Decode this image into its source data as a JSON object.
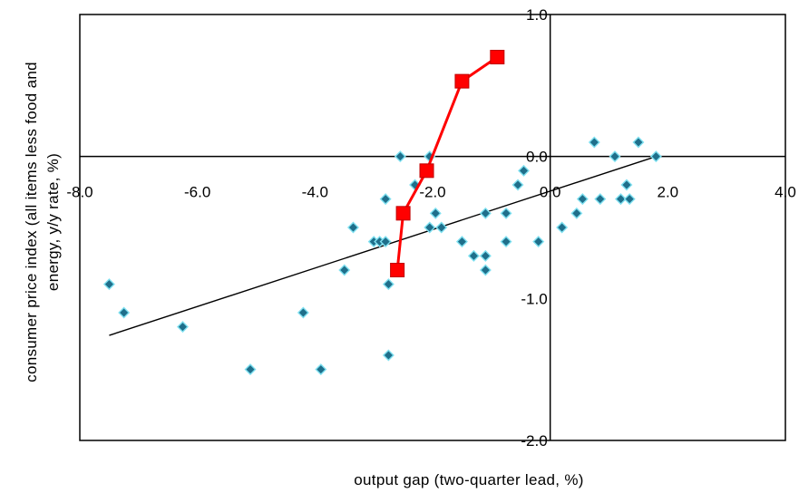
{
  "chart_data": {
    "type": "scatter",
    "xlabel": "output gap (two-quarter lead, %)",
    "ylabel_line1": "consumer price index (all items less food and",
    "ylabel_line2": "energy, y/y rate, %)",
    "xlim": [
      -8.0,
      4.0
    ],
    "ylim": [
      -2.0,
      1.0
    ],
    "x_ticks": [
      {
        "value": -8.0,
        "label": "-8.0"
      },
      {
        "value": -6.0,
        "label": "-6.0"
      },
      {
        "value": -4.0,
        "label": "-4.0"
      },
      {
        "value": -2.0,
        "label": "-2.0"
      },
      {
        "value": 0.0,
        "label": "0.0"
      },
      {
        "value": 2.0,
        "label": "2.0"
      },
      {
        "value": 4.0,
        "label": "4.0"
      }
    ],
    "y_ticks": [
      {
        "value": 1.0,
        "label": "1.0"
      },
      {
        "value": 0.0,
        "label": "0.0"
      },
      {
        "value": -1.0,
        "label": "-1.0"
      },
      {
        "value": -2.0,
        "label": "-2.0"
      }
    ],
    "grid": false,
    "colors": {
      "scatter_fill": "#1f6f8b",
      "scatter_edge": "#7fe0f0",
      "highlight": "#ff0000",
      "trend": "#000000"
    },
    "series": [
      {
        "kind": "scatter",
        "points": [
          [
            -7.5,
            -0.9
          ],
          [
            -7.25,
            -1.1
          ],
          [
            -6.25,
            -1.2
          ],
          [
            -5.1,
            -1.5
          ],
          [
            -4.2,
            -1.1
          ],
          [
            -3.9,
            -1.5
          ],
          [
            -3.5,
            -0.8
          ],
          [
            -3.35,
            -0.5
          ],
          [
            -3.0,
            -0.6
          ],
          [
            -2.9,
            -0.6
          ],
          [
            -2.8,
            -0.6
          ],
          [
            -2.8,
            -0.3
          ],
          [
            -2.75,
            -0.9
          ],
          [
            -2.75,
            -1.4
          ],
          [
            -2.55,
            0.0
          ],
          [
            -2.3,
            -0.2
          ],
          [
            -2.05,
            -0.5
          ],
          [
            -2.05,
            0.0
          ],
          [
            -1.95,
            -0.4
          ],
          [
            -1.85,
            -0.5
          ],
          [
            -1.5,
            -0.6
          ],
          [
            -1.3,
            -0.7
          ],
          [
            -1.1,
            -0.8
          ],
          [
            -1.1,
            -0.4
          ],
          [
            -1.1,
            -0.7
          ],
          [
            -0.75,
            -0.4
          ],
          [
            -0.75,
            -0.6
          ],
          [
            -0.55,
            -0.2
          ],
          [
            -0.45,
            -0.1
          ],
          [
            -0.2,
            -0.6
          ],
          [
            0.2,
            -0.5
          ],
          [
            0.45,
            -0.4
          ],
          [
            0.55,
            -0.3
          ],
          [
            0.75,
            0.1
          ],
          [
            0.85,
            -0.3
          ],
          [
            1.1,
            0.0
          ],
          [
            1.2,
            -0.3
          ],
          [
            1.3,
            -0.2
          ],
          [
            1.35,
            -0.3
          ],
          [
            1.5,
            0.1
          ],
          [
            1.8,
            0.0
          ]
        ]
      },
      {
        "kind": "line-markers",
        "points": [
          [
            -2.6,
            -0.8
          ],
          [
            -2.5,
            -0.4
          ],
          [
            -2.1,
            -0.1
          ],
          [
            -1.5,
            0.53
          ],
          [
            -0.9,
            0.7
          ]
        ]
      },
      {
        "kind": "trendline",
        "points": [
          [
            -7.5,
            -1.26
          ],
          [
            1.8,
            0.0
          ]
        ]
      }
    ]
  }
}
